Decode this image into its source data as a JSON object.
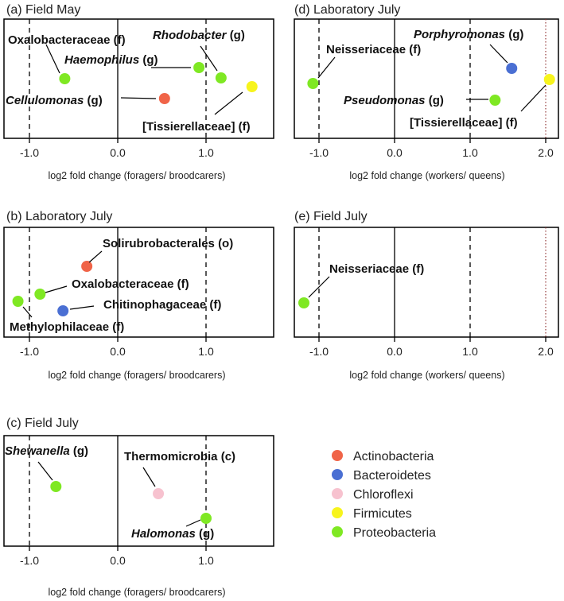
{
  "colors": {
    "Actinobacteria": "#f06448",
    "Bacteroidetes": "#4a6fd3",
    "Chloroflexi": "#f7c2cf",
    "Firmicutes": "#f7f41d",
    "Proteobacteria": "#7fe823"
  },
  "legend": {
    "items": [
      {
        "label": "Actinobacteria",
        "color": "#f06448"
      },
      {
        "label": "Bacteroidetes",
        "color": "#4a6fd3"
      },
      {
        "label": "Chloroflexi",
        "color": "#f7c2cf"
      },
      {
        "label": "Firmicutes",
        "color": "#f7f41d"
      },
      {
        "label": "Proteobacteria",
        "color": "#7fe823"
      }
    ]
  },
  "chart_data": [
    {
      "type": "scatter",
      "panel": "(a)",
      "title": "Field May",
      "xlabel": "log2 fold change (foragers/ broodcarers)",
      "xlim": [
        -1.3,
        1.7
      ],
      "xticks": [
        {
          "value": -1.0,
          "label": "-1.0"
        },
        {
          "value": 0.0,
          "label": "0.0"
        },
        {
          "value": 1.0,
          "label": "1.0"
        }
      ],
      "dashed_lines": [
        -1.0,
        1.0
      ],
      "dotted_lines": [],
      "points": [
        {
          "label": "Oxalobacteraceae (f)",
          "name": "Oxalobacteraceae",
          "tag": "(f)",
          "italic": false,
          "x": -0.6,
          "y": 2,
          "phylum": "Proteobacteria"
        },
        {
          "label": "Haemophilus (g)",
          "name": "Haemophilus",
          "tag": "(g)",
          "italic": true,
          "x": 0.92,
          "y": 3,
          "phylum": "Proteobacteria"
        },
        {
          "label": "Rhodobacter (g)",
          "name": "Rhodobacter",
          "tag": "(g)",
          "italic": true,
          "x": 1.17,
          "y": 2,
          "phylum": "Proteobacteria"
        },
        {
          "label": "Cellulomonas (g)",
          "name": "Cellulomonas",
          "tag": "(g)",
          "italic": true,
          "x": 0.53,
          "y": 0,
          "phylum": "Actinobacteria"
        },
        {
          "label": "[Tissierellaceae] (f)",
          "name": "[Tissierellaceae]",
          "tag": "(f)",
          "italic": false,
          "x": 1.52,
          "y": 1,
          "phylum": "Firmicutes"
        }
      ]
    },
    {
      "type": "scatter",
      "panel": "(b)",
      "title": "Laboratory July",
      "xlabel": "log2 fold change (foragers/ broodcarers)",
      "xlim": [
        -1.3,
        1.7
      ],
      "xticks": [
        {
          "value": -1.0,
          "label": "-1.0"
        },
        {
          "value": 0.0,
          "label": "0.0"
        },
        {
          "value": 1.0,
          "label": "1.0"
        }
      ],
      "dashed_lines": [
        -1.0,
        1.0
      ],
      "dotted_lines": [],
      "points": [
        {
          "label": "Solirubrobacterales (o)",
          "name": "Solirubrobacterales",
          "tag": "(o)",
          "italic": false,
          "x": -0.35,
          "y": 2,
          "phylum": "Actinobacteria"
        },
        {
          "label": "Oxalobacteraceae (f)",
          "name": "Oxalobacteraceae",
          "tag": "(f)",
          "italic": false,
          "x": -0.88,
          "y": 1,
          "phylum": "Proteobacteria"
        },
        {
          "label": "Chitinophagaceae (f)",
          "name": "Chitinophagaceae",
          "tag": "(f)",
          "italic": false,
          "x": -0.62,
          "y": 0,
          "phylum": "Bacteroidetes"
        },
        {
          "label": "Methylophilaceae (f)",
          "name": "Methylophilaceae",
          "tag": "(f)",
          "italic": false,
          "x": -1.13,
          "y": 0.5,
          "phylum": "Proteobacteria"
        }
      ]
    },
    {
      "type": "scatter",
      "panel": "(c)",
      "title": "Field July",
      "xlabel": "log2 fold change (foragers/ broodcarers)",
      "xlim": [
        -1.3,
        1.7
      ],
      "xticks": [
        {
          "value": -1.0,
          "label": "-1.0"
        },
        {
          "value": 0.0,
          "label": "0.0"
        },
        {
          "value": 1.0,
          "label": "1.0"
        }
      ],
      "dashed_lines": [
        -1.0,
        1.0
      ],
      "dotted_lines": [],
      "points": [
        {
          "label": "Shewanella (g)",
          "name": "Shewanella",
          "tag": "(g)",
          "italic": true,
          "x": -0.7,
          "y": 2,
          "phylum": "Proteobacteria"
        },
        {
          "label": "Thermomicrobia (c)",
          "name": "Thermomicrobia",
          "tag": "(c)",
          "italic": false,
          "x": 0.46,
          "y": 1.5,
          "phylum": "Chloroflexi"
        },
        {
          "label": "Halomonas (g)",
          "name": "Halomonas",
          "tag": "(g)",
          "italic": true,
          "x": 1.0,
          "y": 1,
          "phylum": "Proteobacteria"
        }
      ]
    },
    {
      "type": "scatter",
      "panel": "(d)",
      "title": "Laboratory July",
      "xlabel": "log2 fold change (workers/ queens)",
      "xlim": [
        -1.3,
        2.2
      ],
      "xticks": [
        {
          "value": -1.0,
          "label": "-1.0"
        },
        {
          "value": 0.0,
          "label": "0.0"
        },
        {
          "value": 1.0,
          "label": "1.0"
        },
        {
          "value": 2.0,
          "label": "2.0"
        }
      ],
      "dashed_lines": [
        -1.0,
        1.0
      ],
      "dotted_lines": [
        2.0
      ],
      "points": [
        {
          "label": "Neisseriaceae (f)",
          "name": "Neisseriaceae",
          "tag": "(f)",
          "italic": false,
          "x": -1.08,
          "y": 1,
          "phylum": "Proteobacteria"
        },
        {
          "label": "Porphyromonas (g)",
          "name": "Porphyromonas",
          "tag": "(g)",
          "italic": true,
          "x": 1.55,
          "y": 2,
          "phylum": "Bacteroidetes"
        },
        {
          "label": "Pseudomonas (g)",
          "name": "Pseudomonas",
          "tag": "(g)",
          "italic": true,
          "x": 1.33,
          "y": 0,
          "phylum": "Proteobacteria"
        },
        {
          "label": "[Tissierellaceae] (f)",
          "name": "[Tissierellaceae]",
          "tag": "(f)",
          "italic": false,
          "x": 2.05,
          "y": 1,
          "phylum": "Firmicutes"
        }
      ]
    },
    {
      "type": "scatter",
      "panel": "(e)",
      "title": "Field July",
      "xlabel": "log2 fold change (workers/ queens)",
      "xlim": [
        -1.3,
        2.2
      ],
      "xticks": [
        {
          "value": -1.0,
          "label": "-1.0"
        },
        {
          "value": 0.0,
          "label": "0.0"
        },
        {
          "value": 1.0,
          "label": "1.0"
        },
        {
          "value": 2.0,
          "label": "2.0"
        }
      ],
      "dashed_lines": [
        -1.0,
        1.0
      ],
      "dotted_lines": [
        2.0
      ],
      "points": [
        {
          "label": "Neisseriaceae (f)",
          "name": "Neisseriaceae",
          "tag": "(f)",
          "italic": false,
          "x": -1.2,
          "y": 1,
          "phylum": "Proteobacteria"
        }
      ]
    }
  ]
}
